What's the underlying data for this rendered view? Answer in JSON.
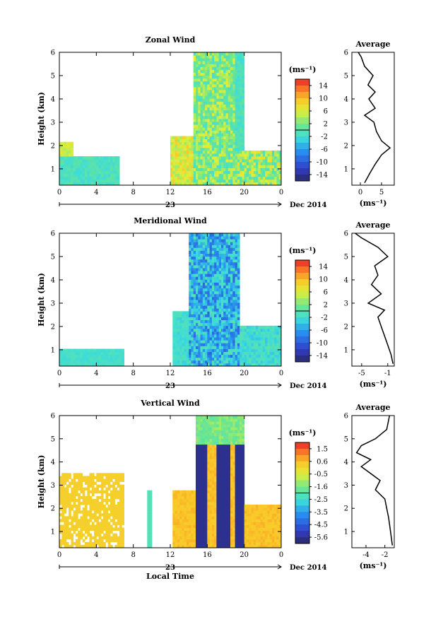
{
  "chart_data": [
    {
      "type": "heatmap",
      "title": "Zonal Wind",
      "ylabel": "Height (km)",
      "x_ticks": [
        "0",
        "4",
        "8",
        "12",
        "16",
        "20",
        "0"
      ],
      "y_ticks": [
        "1",
        "2",
        "3",
        "4",
        "5",
        "6"
      ],
      "xlim": [
        0,
        24
      ],
      "ylim": [
        0.3,
        6
      ],
      "date_marker": "23",
      "date_suffix": "Dec 2014",
      "colorbar": {
        "unit": "(ms⁻¹)",
        "ticks": [
          "14",
          "10",
          "6",
          "2",
          "-2",
          "-6",
          "-10",
          "-14"
        ],
        "range": [
          -16,
          16
        ]
      },
      "average_profile": {
        "title": "Average",
        "x_ticks": [
          "0",
          "5"
        ],
        "xlim": [
          -2,
          8
        ],
        "xlabel": "(ms⁻¹)",
        "y_ticks": [
          "1",
          "2",
          "3",
          "4",
          "5",
          "6"
        ],
        "values": [
          {
            "height": 0.4,
            "value": 1.0
          },
          {
            "height": 0.8,
            "value": 2.2
          },
          {
            "height": 1.2,
            "value": 3.5
          },
          {
            "height": 1.6,
            "value": 5.0
          },
          {
            "height": 1.9,
            "value": 7.0
          },
          {
            "height": 2.2,
            "value": 5.0
          },
          {
            "height": 2.6,
            "value": 3.8
          },
          {
            "height": 3.0,
            "value": 3.2
          },
          {
            "height": 3.3,
            "value": 1.0
          },
          {
            "height": 3.6,
            "value": 3.5
          },
          {
            "height": 4.0,
            "value": 2.0
          },
          {
            "height": 4.3,
            "value": 3.5
          },
          {
            "height": 4.6,
            "value": 1.8
          },
          {
            "height": 5.0,
            "value": 3.0
          },
          {
            "height": 5.4,
            "value": 1.0
          },
          {
            "height": 5.8,
            "value": 0.2
          },
          {
            "height": 6.0,
            "value": -0.5
          }
        ]
      }
    },
    {
      "type": "heatmap",
      "title": "Meridional Wind",
      "ylabel": "Height (km)",
      "x_ticks": [
        "0",
        "4",
        "8",
        "12",
        "16",
        "20",
        "0"
      ],
      "y_ticks": [
        "1",
        "2",
        "3",
        "4",
        "5",
        "6"
      ],
      "xlim": [
        0,
        24
      ],
      "ylim": [
        0.3,
        6
      ],
      "date_marker": "23",
      "date_suffix": "Dec 2014",
      "colorbar": {
        "unit": "(ms⁻¹)",
        "ticks": [
          "14",
          "10",
          "6",
          "2",
          "-2",
          "-6",
          "-10",
          "-14"
        ],
        "range": [
          -16,
          16
        ]
      },
      "average_profile": {
        "title": "Average",
        "x_ticks": [
          "-5",
          "-1"
        ],
        "xlim": [
          -6.5,
          0
        ],
        "xlabel": "(ms⁻¹)",
        "y_ticks": [
          "1",
          "2",
          "3",
          "4",
          "5",
          "6"
        ],
        "values": [
          {
            "height": 0.4,
            "value": -0.2
          },
          {
            "height": 0.8,
            "value": -0.5
          },
          {
            "height": 1.2,
            "value": -1.0
          },
          {
            "height": 1.6,
            "value": -1.5
          },
          {
            "height": 2.0,
            "value": -2.0
          },
          {
            "height": 2.4,
            "value": -2.5
          },
          {
            "height": 2.7,
            "value": -1.5
          },
          {
            "height": 3.0,
            "value": -4.0
          },
          {
            "height": 3.4,
            "value": -2.0
          },
          {
            "height": 3.8,
            "value": -3.5
          },
          {
            "height": 4.2,
            "value": -2.5
          },
          {
            "height": 4.6,
            "value": -3.0
          },
          {
            "height": 5.0,
            "value": -1.0
          },
          {
            "height": 5.4,
            "value": -2.5
          },
          {
            "height": 5.8,
            "value": -5.0
          },
          {
            "height": 6.0,
            "value": -6.0
          }
        ]
      }
    },
    {
      "type": "heatmap",
      "title": "Vertical Wind",
      "ylabel": "Height (km)",
      "xlabel": "Local Time",
      "x_ticks": [
        "0",
        "4",
        "8",
        "12",
        "16",
        "20",
        "0"
      ],
      "y_ticks": [
        "1",
        "2",
        "3",
        "4",
        "5",
        "6"
      ],
      "xlim": [
        0,
        24
      ],
      "ylim": [
        0.3,
        6
      ],
      "date_marker": "23",
      "date_suffix": "Dec 2014",
      "colorbar": {
        "unit": "(ms⁻¹)",
        "ticks": [
          "1.5",
          "0.6",
          "-0.5",
          "-1.6",
          "-2.5",
          "-3.5",
          "-4.5",
          "-5.6"
        ],
        "range": [
          -6,
          2
        ]
      },
      "average_profile": {
        "title": "Average",
        "x_ticks": [
          "-4",
          "-2"
        ],
        "xlim": [
          -5.5,
          -1
        ],
        "xlabel": "(ms⁻¹)",
        "y_ticks": [
          "1",
          "2",
          "3",
          "4",
          "5",
          "6"
        ],
        "values": [
          {
            "height": 0.4,
            "value": -1.2
          },
          {
            "height": 1.0,
            "value": -1.4
          },
          {
            "height": 1.6,
            "value": -1.6
          },
          {
            "height": 2.0,
            "value": -1.8
          },
          {
            "height": 2.4,
            "value": -2.0
          },
          {
            "height": 2.8,
            "value": -3.0
          },
          {
            "height": 3.2,
            "value": -2.5
          },
          {
            "height": 3.5,
            "value": -3.5
          },
          {
            "height": 3.8,
            "value": -4.5
          },
          {
            "height": 4.1,
            "value": -3.5
          },
          {
            "height": 4.4,
            "value": -5.0
          },
          {
            "height": 4.7,
            "value": -4.5
          },
          {
            "height": 5.0,
            "value": -3.0
          },
          {
            "height": 5.4,
            "value": -1.8
          },
          {
            "height": 6.0,
            "value": -1.5
          }
        ]
      }
    }
  ]
}
